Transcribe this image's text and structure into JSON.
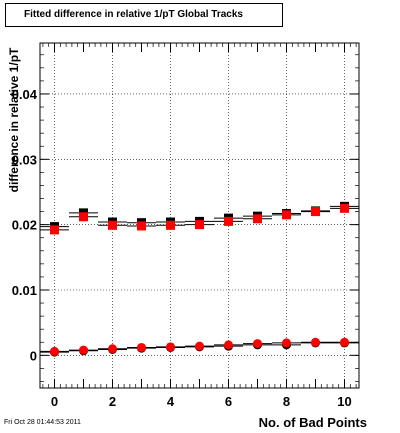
{
  "chart_data": {
    "type": "scatter",
    "title": "Fitted difference in relative 1/pT  Global Tracks",
    "xlabel": "No. of Bad Points",
    "ylabel": "difference in relative 1/pT",
    "xlim": [
      -0.5,
      10.5
    ],
    "ylim": [
      -0.005,
      0.0478
    ],
    "x_ticks": [
      0,
      2,
      4,
      6,
      8,
      10
    ],
    "y_ticks": [
      0,
      0.01,
      0.02,
      0.03,
      0.04
    ],
    "x_tick_labels": [
      "0",
      "2",
      "4",
      "6",
      "8",
      "10"
    ],
    "y_tick_labels": [
      "0",
      "0.01",
      "0.02",
      "0.03",
      "0.04"
    ],
    "grid": true,
    "series": [
      {
        "marker": "square",
        "color": "#000000",
        "x": [
          0,
          1,
          2,
          3,
          4,
          5,
          6,
          7,
          8,
          9,
          10
        ],
        "y": [
          0.0197,
          0.0218,
          0.0204,
          0.0203,
          0.0204,
          0.0205,
          0.021,
          0.0213,
          0.0217,
          0.0221,
          0.0228
        ],
        "xerr": 0.5
      },
      {
        "marker": "square",
        "color": "#ff0000",
        "x": [
          0,
          1,
          2,
          3,
          4,
          5,
          6,
          7,
          8,
          9,
          10
        ],
        "y": [
          0.0192,
          0.0212,
          0.0199,
          0.0198,
          0.0199,
          0.02,
          0.0205,
          0.0209,
          0.0215,
          0.022,
          0.0225
        ],
        "xerr": 0.5
      },
      {
        "marker": "circle",
        "color": "#000000",
        "x": [
          0,
          1,
          2,
          3,
          4,
          5,
          6,
          7,
          8,
          9,
          10
        ],
        "y": [
          0.0005,
          0.0007,
          0.0009,
          0.0011,
          0.0012,
          0.0013,
          0.0014,
          0.0016,
          0.0016,
          0.0019,
          0.0019
        ],
        "xerr": 0.5
      },
      {
        "marker": "circle",
        "color": "#ff0000",
        "x": [
          0,
          1,
          2,
          3,
          4,
          5,
          6,
          7,
          8,
          9,
          10
        ],
        "y": [
          0.0006,
          0.0008,
          0.001,
          0.0012,
          0.0013,
          0.0014,
          0.0016,
          0.0018,
          0.0019,
          0.002,
          0.002
        ],
        "xerr": 0.5
      }
    ]
  },
  "timestamp": "Fri Oct 28 01:44:53 2011"
}
